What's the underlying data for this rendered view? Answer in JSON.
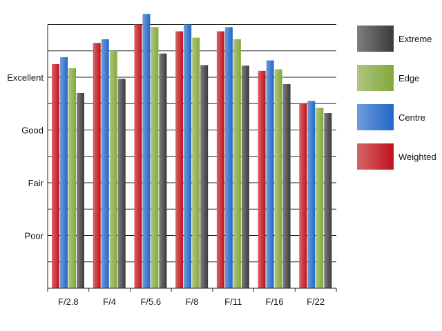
{
  "chart_data": {
    "type": "bar",
    "title": "",
    "xlabel": "",
    "ylabel": "",
    "categories": [
      "F/2.8",
      "F/4",
      "F/5.6",
      "F/8",
      "F/11",
      "F/16",
      "F/22"
    ],
    "y_tick_labels": [
      {
        "value": 1,
        "label": "Poor"
      },
      {
        "value": 2,
        "label": "Fair"
      },
      {
        "value": 3,
        "label": "Good"
      },
      {
        "value": 4,
        "label": "Excellent"
      }
    ],
    "ylim": [
      0,
      5
    ],
    "grid": "horizontal",
    "legend_position": "right",
    "series": [
      {
        "name": "Weighted",
        "color": "#c0121c",
        "values": [
          4.25,
          4.65,
          5.0,
          4.87,
          4.87,
          4.12,
          3.5
        ]
      },
      {
        "name": "Centre",
        "color": "#2166c8",
        "values": [
          4.38,
          4.72,
          5.2,
          5.0,
          4.95,
          4.32,
          3.55
        ]
      },
      {
        "name": "Edge",
        "color": "#82a83a",
        "values": [
          4.17,
          4.5,
          4.95,
          4.75,
          4.72,
          4.15,
          3.42
        ]
      },
      {
        "name": "Extreme",
        "color": "#3a3a3a",
        "values": [
          3.7,
          3.97,
          4.45,
          4.23,
          4.22,
          3.87,
          3.32
        ]
      }
    ],
    "legend_order": [
      "Extreme",
      "Edge",
      "Centre",
      "Weighted"
    ]
  }
}
